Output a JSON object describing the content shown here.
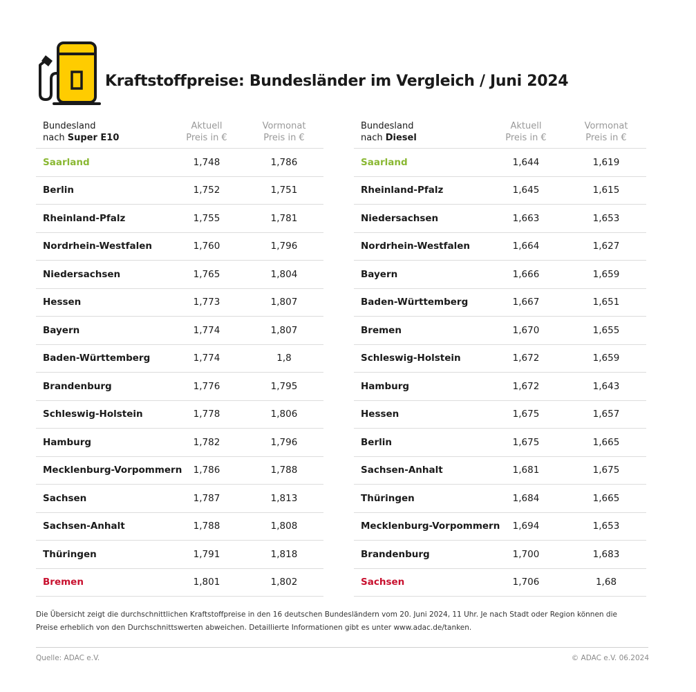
{
  "title": "Kraftstoffpreise: Bundesländer im Vergleich / Juni 2024",
  "colors": {
    "best": "#8ab833",
    "worst": "#c8102e",
    "pump": "#ffcc00"
  },
  "icon": "fuel-pump-icon",
  "left_table": {
    "header": {
      "name_line1": "Bundesland",
      "name_prefix": "nach ",
      "name_fuel": "Super E10",
      "col1_line1": "Aktuell",
      "col1_line2": "Preis in €",
      "col2_line1": "Vormonat",
      "col2_line2": "Preis in €"
    },
    "rows": [
      {
        "name": "Saarland",
        "current": "1,748",
        "previous": "1,786"
      },
      {
        "name": "Berlin",
        "current": "1,752",
        "previous": "1,751"
      },
      {
        "name": "Rheinland-Pfalz",
        "current": "1,755",
        "previous": "1,781"
      },
      {
        "name": "Nordrhein-Westfalen",
        "current": "1,760",
        "previous": "1,796"
      },
      {
        "name": "Niedersachsen",
        "current": "1,765",
        "previous": "1,804"
      },
      {
        "name": "Hessen",
        "current": "1,773",
        "previous": "1,807"
      },
      {
        "name": "Bayern",
        "current": "1,774",
        "previous": "1,807"
      },
      {
        "name": "Baden-Württemberg",
        "current": "1,774",
        "previous": "1,8"
      },
      {
        "name": "Brandenburg",
        "current": "1,776",
        "previous": "1,795"
      },
      {
        "name": "Schleswig-Holstein",
        "current": "1,778",
        "previous": "1,806"
      },
      {
        "name": "Hamburg",
        "current": "1,782",
        "previous": "1,796"
      },
      {
        "name": "Mecklenburg-Vorpommern",
        "current": "1,786",
        "previous": "1,788"
      },
      {
        "name": "Sachsen",
        "current": "1,787",
        "previous": "1,813"
      },
      {
        "name": "Sachsen-Anhalt",
        "current": "1,788",
        "previous": "1,808"
      },
      {
        "name": "Thüringen",
        "current": "1,791",
        "previous": "1,818"
      },
      {
        "name": "Bremen",
        "current": "1,801",
        "previous": "1,802"
      }
    ]
  },
  "right_table": {
    "header": {
      "name_line1": "Bundesland",
      "name_prefix": "nach ",
      "name_fuel": "Diesel",
      "col1_line1": "Aktuell",
      "col1_line2": "Preis in €",
      "col2_line1": "Vormonat",
      "col2_line2": "Preis in €"
    },
    "rows": [
      {
        "name": "Saarland",
        "current": "1,644",
        "previous": "1,619"
      },
      {
        "name": "Rheinland-Pfalz",
        "current": "1,645",
        "previous": "1,615"
      },
      {
        "name": "Niedersachsen",
        "current": "1,663",
        "previous": "1,653"
      },
      {
        "name": "Nordrhein-Westfalen",
        "current": "1,664",
        "previous": "1,627"
      },
      {
        "name": "Bayern",
        "current": "1,666",
        "previous": "1,659"
      },
      {
        "name": "Baden-Württemberg",
        "current": "1,667",
        "previous": "1,651"
      },
      {
        "name": "Bremen",
        "current": "1,670",
        "previous": "1,655"
      },
      {
        "name": "Schleswig-Holstein",
        "current": "1,672",
        "previous": "1,659"
      },
      {
        "name": "Hamburg",
        "current": "1,672",
        "previous": "1,643"
      },
      {
        "name": "Hessen",
        "current": "1,675",
        "previous": "1,657"
      },
      {
        "name": "Berlin",
        "current": "1,675",
        "previous": "1,665"
      },
      {
        "name": "Sachsen-Anhalt",
        "current": "1,681",
        "previous": "1,675"
      },
      {
        "name": "Thüringen",
        "current": "1,684",
        "previous": "1,665"
      },
      {
        "name": "Mecklenburg-Vorpommern",
        "current": "1,694",
        "previous": "1,653"
      },
      {
        "name": "Brandenburg",
        "current": "1,700",
        "previous": "1,683"
      },
      {
        "name": "Sachsen",
        "current": "1,706",
        "previous": "1,68"
      }
    ]
  },
  "footnote_line1": "Die Übersicht zeigt die durchschnittlichen Kraftstoffpreise in den 16 deutschen Bundesländern vom 20. Juni 2024, 11 Uhr. Je nach Stadt oder Region können die",
  "footnote_line2": "Preise erheblich von den Durchschnittswerten abweichen. Detaillierte Informationen gibt es unter www.adac.de/tanken.",
  "source": "Quelle: ADAC e.V.",
  "copyright": "© ADAC e.V. 06.2024"
}
